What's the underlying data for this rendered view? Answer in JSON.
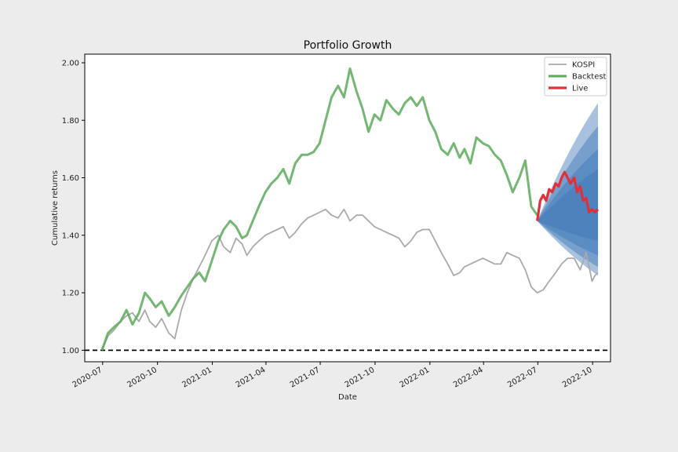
{
  "chart_data": {
    "type": "line",
    "title": "Portfolio Growth",
    "xlabel": "Date",
    "ylabel": "Cumulative returns",
    "xlim": [
      "2020-06-01",
      "2022-10-31"
    ],
    "ylim": [
      0.96,
      2.03
    ],
    "grid": false,
    "legend_position": "top-right",
    "x_ticks": [
      "2020-07",
      "2020-10",
      "2021-01",
      "2021-04",
      "2021-07",
      "2021-10",
      "2022-01",
      "2022-04",
      "2022-07",
      "2022-10"
    ],
    "y_ticks": [
      1.0,
      1.2,
      1.4,
      1.6,
      1.8,
      2.0
    ],
    "y_tick_labels": [
      "1.00",
      "1.20",
      "1.40",
      "1.60",
      "1.80",
      "2.00"
    ],
    "reference_line": {
      "y": 1.0,
      "style": "dashed",
      "color": "#000000"
    },
    "series": [
      {
        "name": "KOSPI",
        "color": "#aaaaaa",
        "x": [
          "2020-06-30",
          "2020-07-10",
          "2020-07-20",
          "2020-07-31",
          "2020-08-10",
          "2020-08-20",
          "2020-08-31",
          "2020-09-10",
          "2020-09-18",
          "2020-09-28",
          "2020-10-08",
          "2020-10-20",
          "2020-10-30",
          "2020-11-10",
          "2020-11-20",
          "2020-11-30",
          "2020-12-10",
          "2020-12-20",
          "2020-12-31",
          "2021-01-11",
          "2021-01-20",
          "2021-01-31",
          "2021-02-10",
          "2021-02-20",
          "2021-02-28",
          "2021-03-10",
          "2021-03-20",
          "2021-03-31",
          "2021-04-10",
          "2021-04-20",
          "2021-04-30",
          "2021-05-10",
          "2021-05-20",
          "2021-05-31",
          "2021-06-10",
          "2021-06-20",
          "2021-06-30",
          "2021-07-10",
          "2021-07-20",
          "2021-07-31",
          "2021-08-10",
          "2021-08-20",
          "2021-08-31",
          "2021-09-10",
          "2021-09-20",
          "2021-09-30",
          "2021-10-10",
          "2021-10-20",
          "2021-10-31",
          "2021-11-10",
          "2021-11-20",
          "2021-11-30",
          "2021-12-10",
          "2021-12-20",
          "2021-12-31",
          "2022-01-10",
          "2022-01-20",
          "2022-01-31",
          "2022-02-10",
          "2022-02-20",
          "2022-02-28",
          "2022-03-10",
          "2022-03-20",
          "2022-03-31",
          "2022-04-10",
          "2022-04-20",
          "2022-04-30",
          "2022-05-10",
          "2022-05-20",
          "2022-05-31",
          "2022-06-10",
          "2022-06-20",
          "2022-06-30",
          "2022-07-10",
          "2022-07-20",
          "2022-07-31",
          "2022-08-10",
          "2022-08-20",
          "2022-08-31",
          "2022-09-10",
          "2022-09-20",
          "2022-09-30",
          "2022-10-05",
          "2022-10-10"
        ],
        "values": [
          1.0,
          1.05,
          1.07,
          1.1,
          1.12,
          1.13,
          1.1,
          1.14,
          1.1,
          1.08,
          1.11,
          1.06,
          1.04,
          1.14,
          1.2,
          1.25,
          1.29,
          1.33,
          1.38,
          1.4,
          1.36,
          1.34,
          1.39,
          1.37,
          1.33,
          1.36,
          1.38,
          1.4,
          1.41,
          1.42,
          1.43,
          1.39,
          1.41,
          1.44,
          1.46,
          1.47,
          1.48,
          1.49,
          1.47,
          1.46,
          1.49,
          1.45,
          1.47,
          1.47,
          1.45,
          1.43,
          1.42,
          1.41,
          1.4,
          1.39,
          1.36,
          1.38,
          1.41,
          1.42,
          1.42,
          1.38,
          1.34,
          1.3,
          1.26,
          1.27,
          1.29,
          1.3,
          1.31,
          1.32,
          1.31,
          1.3,
          1.3,
          1.34,
          1.33,
          1.32,
          1.28,
          1.22,
          1.2,
          1.21,
          1.24,
          1.27,
          1.3,
          1.32,
          1.32,
          1.28,
          1.34,
          1.24,
          1.26,
          1.27
        ]
      },
      {
        "name": "Backtest",
        "color": "#5aaa5a",
        "x": [
          "2020-06-30",
          "2020-07-10",
          "2020-07-20",
          "2020-07-31",
          "2020-08-10",
          "2020-08-20",
          "2020-08-31",
          "2020-09-10",
          "2020-09-18",
          "2020-09-28",
          "2020-10-08",
          "2020-10-20",
          "2020-10-30",
          "2020-11-10",
          "2020-11-20",
          "2020-11-30",
          "2020-12-10",
          "2020-12-20",
          "2020-12-31",
          "2021-01-11",
          "2021-01-20",
          "2021-01-31",
          "2021-02-10",
          "2021-02-20",
          "2021-02-28",
          "2021-03-10",
          "2021-03-20",
          "2021-03-31",
          "2021-04-10",
          "2021-04-20",
          "2021-04-30",
          "2021-05-10",
          "2021-05-20",
          "2021-05-31",
          "2021-06-10",
          "2021-06-20",
          "2021-06-30",
          "2021-07-10",
          "2021-07-20",
          "2021-07-31",
          "2021-08-10",
          "2021-08-20",
          "2021-08-31",
          "2021-09-10",
          "2021-09-20",
          "2021-09-30",
          "2021-10-10",
          "2021-10-20",
          "2021-10-31",
          "2021-11-10",
          "2021-11-20",
          "2021-11-30",
          "2021-12-10",
          "2021-12-20",
          "2021-12-31",
          "2022-01-10",
          "2022-01-20",
          "2022-01-31",
          "2022-02-10",
          "2022-02-20",
          "2022-02-28",
          "2022-03-10",
          "2022-03-20",
          "2022-03-31",
          "2022-04-10",
          "2022-04-20",
          "2022-04-30",
          "2022-05-10",
          "2022-05-20",
          "2022-05-31",
          "2022-06-10",
          "2022-06-20",
          "2022-06-30"
        ],
        "values": [
          1.0,
          1.06,
          1.08,
          1.1,
          1.14,
          1.09,
          1.13,
          1.2,
          1.18,
          1.15,
          1.17,
          1.12,
          1.15,
          1.19,
          1.22,
          1.25,
          1.27,
          1.24,
          1.31,
          1.38,
          1.42,
          1.45,
          1.43,
          1.39,
          1.4,
          1.45,
          1.5,
          1.55,
          1.58,
          1.6,
          1.63,
          1.58,
          1.65,
          1.68,
          1.68,
          1.69,
          1.72,
          1.8,
          1.88,
          1.92,
          1.88,
          1.98,
          1.9,
          1.84,
          1.76,
          1.82,
          1.8,
          1.87,
          1.84,
          1.82,
          1.86,
          1.88,
          1.85,
          1.88,
          1.8,
          1.76,
          1.7,
          1.68,
          1.72,
          1.67,
          1.7,
          1.65,
          1.74,
          1.72,
          1.71,
          1.68,
          1.66,
          1.61,
          1.55,
          1.6,
          1.66,
          1.5,
          1.47
        ]
      },
      {
        "name": "Live",
        "color": "#e0303a",
        "x": [
          "2022-06-30",
          "2022-07-05",
          "2022-07-10",
          "2022-07-15",
          "2022-07-20",
          "2022-07-25",
          "2022-07-31",
          "2022-08-05",
          "2022-08-10",
          "2022-08-15",
          "2022-08-20",
          "2022-08-25",
          "2022-08-31",
          "2022-09-05",
          "2022-09-10",
          "2022-09-15",
          "2022-09-20",
          "2022-09-25",
          "2022-09-30",
          "2022-10-05",
          "2022-10-10"
        ],
        "values": [
          1.45,
          1.52,
          1.54,
          1.52,
          1.56,
          1.55,
          1.58,
          1.57,
          1.6,
          1.62,
          1.6,
          1.58,
          1.6,
          1.55,
          1.57,
          1.52,
          1.53,
          1.48,
          1.49,
          1.48,
          1.49
        ]
      }
    ],
    "forecast_bands": {
      "color": "#3b75b5",
      "start": "2022-06-30",
      "end": "2022-10-10",
      "start_value": 1.45,
      "levels": [
        {
          "upper": 1.86,
          "lower": 1.26
        },
        {
          "upper": 1.78,
          "lower": 1.29
        },
        {
          "upper": 1.7,
          "lower": 1.33
        },
        {
          "upper": 1.63,
          "lower": 1.38
        }
      ]
    }
  }
}
